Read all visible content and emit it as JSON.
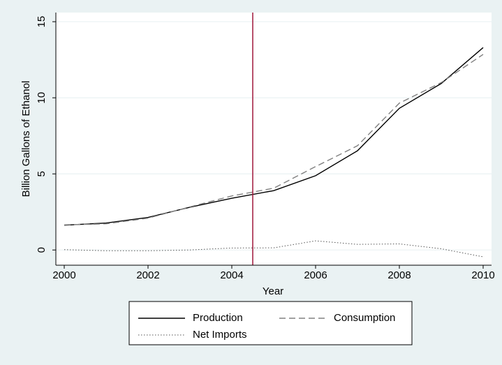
{
  "chart_data": {
    "type": "line",
    "y_label": "Billion Gallons of Ethanol",
    "x_label": "Year",
    "x": [
      2000,
      2001,
      2002,
      2003,
      2004,
      2005,
      2006,
      2007,
      2008,
      2009,
      2010
    ],
    "series": [
      {
        "name": "Production",
        "color": "#000000",
        "style": "solid",
        "values": [
          1.63,
          1.77,
          2.14,
          2.81,
          3.4,
          3.9,
          4.88,
          6.52,
          9.31,
          10.94,
          13.3
        ]
      },
      {
        "name": "Consumption",
        "color": "#808080",
        "style": "dashed",
        "values": [
          1.65,
          1.72,
          2.09,
          2.83,
          3.55,
          4.06,
          5.48,
          6.85,
          9.65,
          11.0,
          12.85
        ]
      },
      {
        "name": "Net Imports",
        "color": "#555555",
        "style": "dotted",
        "values": [
          0.02,
          -0.05,
          -0.05,
          0.0,
          0.13,
          0.14,
          0.6,
          0.37,
          0.4,
          0.08,
          -0.45
        ]
      }
    ],
    "vline": 2004.5,
    "vline_color": "#a0163a",
    "xlim": [
      1999.8,
      2010.2
    ],
    "xticks": [
      2000,
      2002,
      2004,
      2006,
      2008,
      2010
    ],
    "ylim": [
      -1,
      15.6
    ],
    "yticks": [
      0,
      5,
      10,
      15
    ],
    "grid": true
  }
}
